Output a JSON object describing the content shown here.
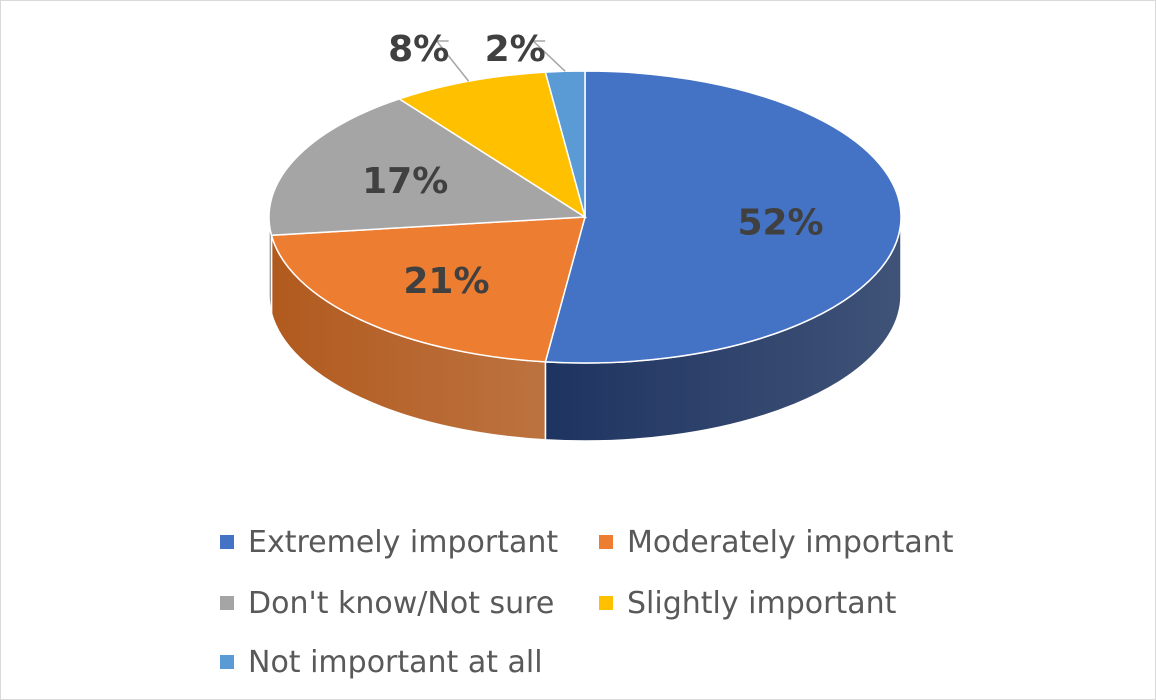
{
  "chart_data": {
    "type": "pie",
    "style": "3d",
    "title": "",
    "legend_position": "bottom",
    "slices": [
      {
        "label": "Extremely important",
        "value": 52,
        "display": "52%",
        "color": "#4472C4",
        "side_color": "#1E3460"
      },
      {
        "label": "Moderately important",
        "value": 21,
        "display": "21%",
        "color": "#ED7D31",
        "side_color": "#B15A1E"
      },
      {
        "label": "Don't know/Not sure",
        "value": 17,
        "display": "17%",
        "color": "#A5A5A5",
        "side_color": "#6E6E6E"
      },
      {
        "label": "Slightly important",
        "value": 8,
        "display": "8%",
        "color": "#FFC000",
        "side_color": "#B38600"
      },
      {
        "label": "Not important at all",
        "value": 2,
        "display": "2%",
        "color": "#5B9BD5",
        "side_color": "#2F5F8F"
      }
    ]
  }
}
